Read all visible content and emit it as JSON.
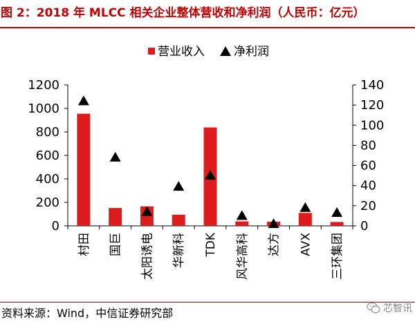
{
  "title": "图 2：2018 年 MLCC 相关企业整体营收和净利润（人民币：亿元）",
  "source": "资料来源：Wind，中信证券研究部",
  "watermark": "芯智讯",
  "colors": {
    "title": "#c00000",
    "bar": "#dd1d1d",
    "marker": "#000000"
  },
  "chart_data": {
    "type": "bar",
    "categories": [
      "村田",
      "国巨",
      "太阳诱电",
      "华新科",
      "TDK",
      "风华高科",
      "达方",
      "AVX",
      "三环集团"
    ],
    "series": [
      {
        "name": "营业收入",
        "type": "bar",
        "axis": "left",
        "values": [
          955,
          152,
          166,
          95,
          838,
          38,
          35,
          110,
          33
        ]
      },
      {
        "name": "净利润",
        "type": "triangle-marker",
        "axis": "right",
        "values": [
          124,
          68,
          14,
          39,
          50,
          10,
          2,
          18,
          13
        ]
      }
    ],
    "y_left": {
      "min": 0,
      "max": 1200,
      "ticks": [
        0,
        200,
        400,
        600,
        800,
        1000,
        1200
      ]
    },
    "y_right": {
      "min": 0,
      "max": 140,
      "ticks": [
        0,
        20,
        40,
        60,
        80,
        100,
        120,
        140
      ]
    },
    "legend": {
      "position": "top-center"
    },
    "grid": false
  }
}
